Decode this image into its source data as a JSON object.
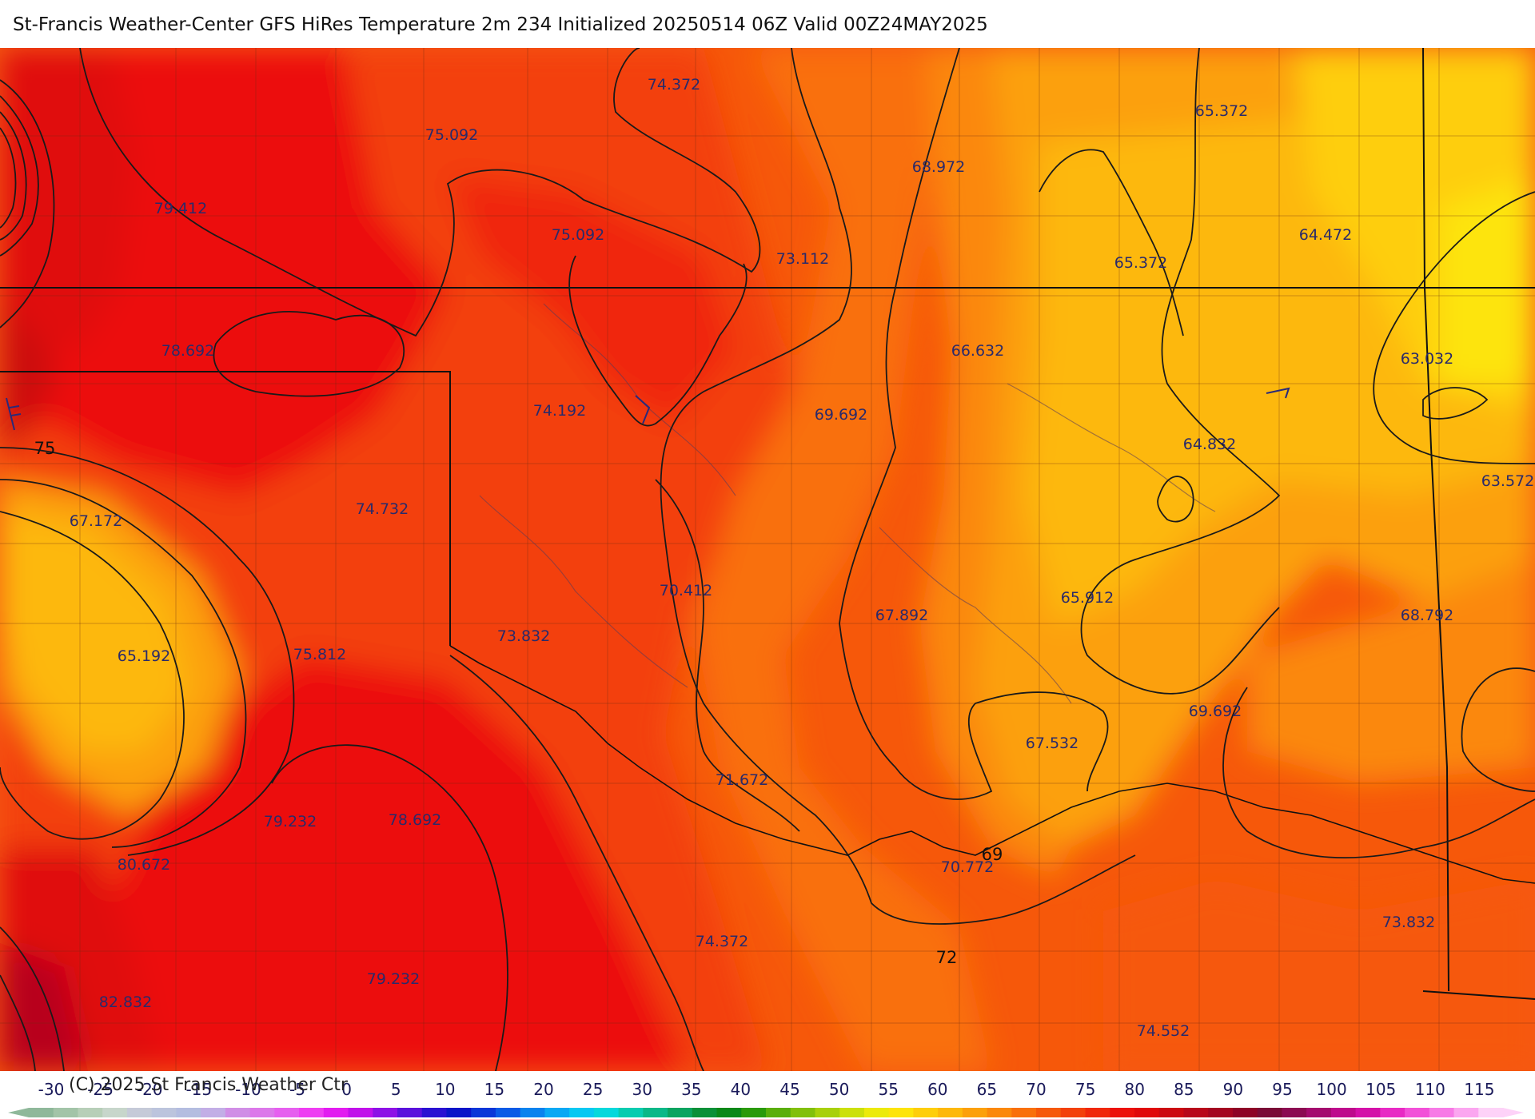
{
  "title": "St-Francis Weather-Center GFS HiRes Temperature 2m  234 Initialized 20250514 06Z Valid 00Z24MAY2025",
  "copyright": "(C) 2025 St Francis Weather Ctr",
  "legend": {
    "ticks": [
      "-30",
      "-25",
      "-20",
      "-15",
      "-10",
      "-5",
      "0",
      "5",
      "10",
      "15",
      "20",
      "25",
      "30",
      "35",
      "40",
      "45",
      "50",
      "55",
      "60",
      "65",
      "70",
      "75",
      "80",
      "85",
      "90",
      "95",
      "100",
      "105",
      "110",
      "115"
    ],
    "colors": [
      "#8fb89a",
      "#a3c4a8",
      "#b7cfb8",
      "#c7d6cb",
      "#c5cad8",
      "#bcc4dd",
      "#b4bde0",
      "#c2aee6",
      "#d08ee6",
      "#dc78ea",
      "#e65fef",
      "#ee3df2",
      "#e21cf0",
      "#c110ea",
      "#8e10e6",
      "#5a10dc",
      "#2a10d2",
      "#0a14c8",
      "#0a36d8",
      "#0a5ae6",
      "#0a82ee",
      "#0aa8f4",
      "#08c8f2",
      "#06d8dc",
      "#08ccb0",
      "#0ab888",
      "#0aa460",
      "#0a9038",
      "#0a8818",
      "#2a9a0a",
      "#5aae0a",
      "#82c00a",
      "#a8d00a",
      "#cce00a",
      "#ecea0a",
      "#fde40a",
      "#fece0a",
      "#fdb80a",
      "#fca00a",
      "#fb880a",
      "#f9700a",
      "#f6580a",
      "#f3400a",
      "#f0280a",
      "#ec100a",
      "#e0080a",
      "#cc0810",
      "#b8061a",
      "#a40420",
      "#8e0226",
      "#7a0a36",
      "#8c0a52",
      "#a40a6e",
      "#be0a8c",
      "#d410a8",
      "#e82ac4",
      "#f250d8",
      "#f77ae6",
      "#fba6f0",
      "#fdd2f8"
    ]
  },
  "map_labels": [
    {
      "text": "74.372"
    },
    {
      "text": "75.092"
    },
    {
      "text": "79.412"
    },
    {
      "text": "75.092"
    },
    {
      "text": "68.972"
    },
    {
      "text": "65.372"
    },
    {
      "text": "73.112"
    },
    {
      "text": "64.472"
    },
    {
      "text": "65.372"
    },
    {
      "text": "78.692"
    },
    {
      "text": "66.632"
    },
    {
      "text": "63.032"
    },
    {
      "text": "74.192"
    },
    {
      "text": "69.692"
    },
    {
      "text": "64.832"
    },
    {
      "text": "63.572"
    },
    {
      "text": "67.172"
    },
    {
      "text": "74.732"
    },
    {
      "text": "70.412"
    },
    {
      "text": "65.912"
    },
    {
      "text": "67.892"
    },
    {
      "text": "68.792"
    },
    {
      "text": "73.832"
    },
    {
      "text": "65.192"
    },
    {
      "text": "75.812"
    },
    {
      "text": "69.692"
    },
    {
      "text": "67.532"
    },
    {
      "text": "71.672"
    },
    {
      "text": "79.232"
    },
    {
      "text": "78.692"
    },
    {
      "text": "80.672"
    },
    {
      "text": "70.772"
    },
    {
      "text": "73.832"
    },
    {
      "text": "74.372"
    },
    {
      "text": "79.232"
    },
    {
      "text": "82.832"
    },
    {
      "text": "74.552"
    }
  ],
  "contour_labels": [
    {
      "text": "75"
    },
    {
      "text": "69"
    },
    {
      "text": "72"
    }
  ]
}
